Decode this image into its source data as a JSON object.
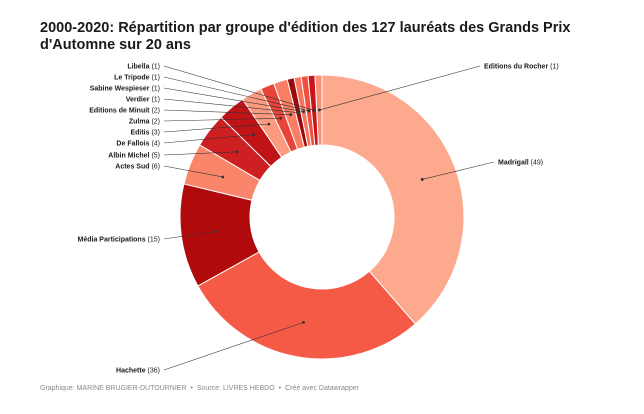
{
  "title": "2000-2020: Répartition par groupe d'édition des 127 lauréats des Grands Prix d'Automne sur 20 ans",
  "footer": {
    "credit": "Graphique: MARINE BRUGIER-DUTOURNIER",
    "separator1": "•",
    "source": "Source: LIVRES HEBDO",
    "separator2": "•",
    "tool": "Créé avec Datawrapper"
  },
  "chart_data": {
    "type": "pie",
    "variant": "donut",
    "title": "2000-2020: Répartition par groupe d'édition des 127 lauréats des Grands Prix d'Automne sur 20 ans",
    "total": 127,
    "slices": [
      {
        "label": "Madrigall",
        "value": 49,
        "color": "#fca98e"
      },
      {
        "label": "Hachette",
        "value": 36,
        "color": "#f55a47"
      },
      {
        "label": "Média Participations",
        "value": 15,
        "color": "#b00a0c"
      },
      {
        "label": "Actes Sud",
        "value": 6,
        "color": "#f9866b"
      },
      {
        "label": "Albin Michel",
        "value": 5,
        "color": "#ce2023"
      },
      {
        "label": "De Fallois",
        "value": 4,
        "color": "#bf1316"
      },
      {
        "label": "Editis",
        "value": 3,
        "color": "#fb9a80"
      },
      {
        "label": "Zulma",
        "value": 2,
        "color": "#e84438"
      },
      {
        "label": "Editions de Minuit",
        "value": 2,
        "color": "#fa7e63"
      },
      {
        "label": "Verdier",
        "value": 1,
        "color": "#9d0a0e"
      },
      {
        "label": "Sabine Wespieser",
        "value": 1,
        "color": "#f6765d"
      },
      {
        "label": "Le Tripode",
        "value": 1,
        "color": "#ee4f3f"
      },
      {
        "label": "Libella",
        "value": 1,
        "color": "#c91519"
      },
      {
        "label": "Editions du Rocher",
        "value": 1,
        "color": "#fb8e73"
      }
    ],
    "legend": "callout-labels"
  }
}
